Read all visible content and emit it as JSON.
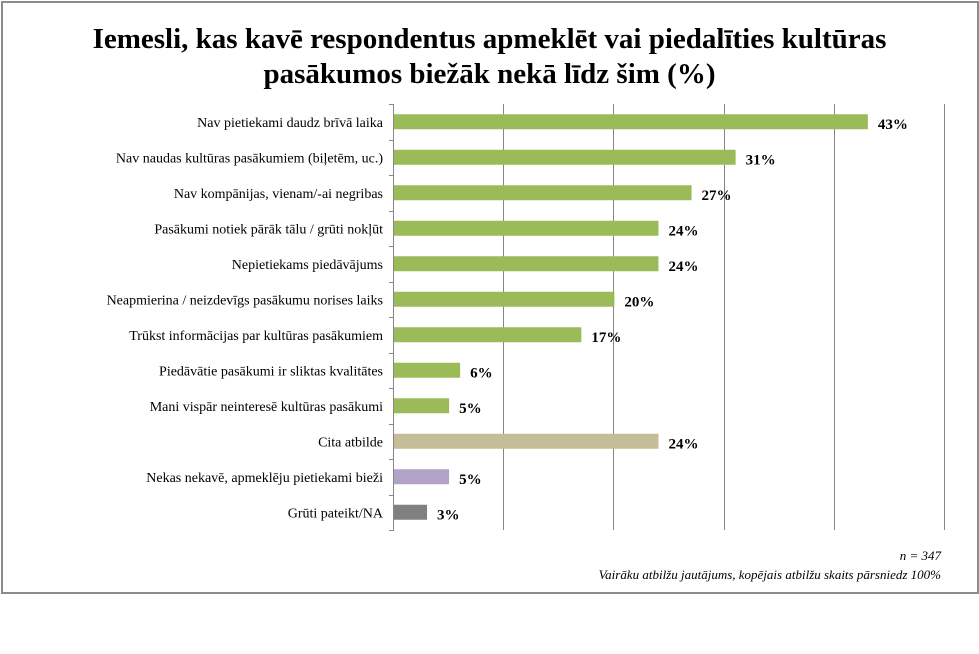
{
  "chart_data": {
    "type": "bar",
    "orientation": "horizontal",
    "title": "Iemesli, kas kavē respondentus apmeklēt vai piedalīties kultūras pasākumos biežāk nekā līdz šim (%)",
    "title_lines": [
      "Iemesli, kas kavē respondentus apmeklēt vai piedalīties kultūras",
      "pasākumos biežāk nekā līdz šim (%)"
    ],
    "xlabel": "",
    "ylabel": "",
    "xlim": [
      0,
      50
    ],
    "grid": true,
    "gridline_values": [
      10,
      20,
      30,
      40,
      50
    ],
    "categories": [
      "Nav pietiekami daudz brīvā laika",
      "Nav naudas kultūras pasākumiem (biļetēm, uc.)",
      "Nav kompānijas, vienam/-ai negribas",
      "Pasākumi notiek pārāk tālu / grūti nokļūt",
      "Nepietiekams piedāvājums",
      "Neapmierina / neizdevīgs pasākumu norises laiks",
      "Trūkst informācijas par kultūras pasākumiem",
      "Piedāvātie pasākumi ir sliktas kvalitātes",
      "Mani vispār neinteresē kultūras pasākumi",
      "Cita atbilde",
      "Nekas nekavē, apmeklēju pietiekami bieži",
      "Grūti pateikt/NA"
    ],
    "values": [
      43,
      31,
      27,
      24,
      24,
      20,
      17,
      6,
      5,
      24,
      5,
      3
    ],
    "value_labels": [
      "43%",
      "31%",
      "27%",
      "24%",
      "24%",
      "20%",
      "17%",
      "6%",
      "5%",
      "24%",
      "5%",
      "3%"
    ],
    "bar_colors": [
      "#9bbb59",
      "#9bbb59",
      "#9bbb59",
      "#9bbb59",
      "#9bbb59",
      "#9bbb59",
      "#9bbb59",
      "#9bbb59",
      "#9bbb59",
      "#c4bd97",
      "#b3a2c7",
      "#808080"
    ],
    "legend": "none"
  },
  "notes": {
    "sample_size": "n = 347",
    "multi_answer": "Vairāku atbilžu jautājums, kopējais atbilžu skaits pārsniedz 100%"
  },
  "colors": {
    "gridline": "#868686",
    "frame": "#8c8c8c"
  }
}
